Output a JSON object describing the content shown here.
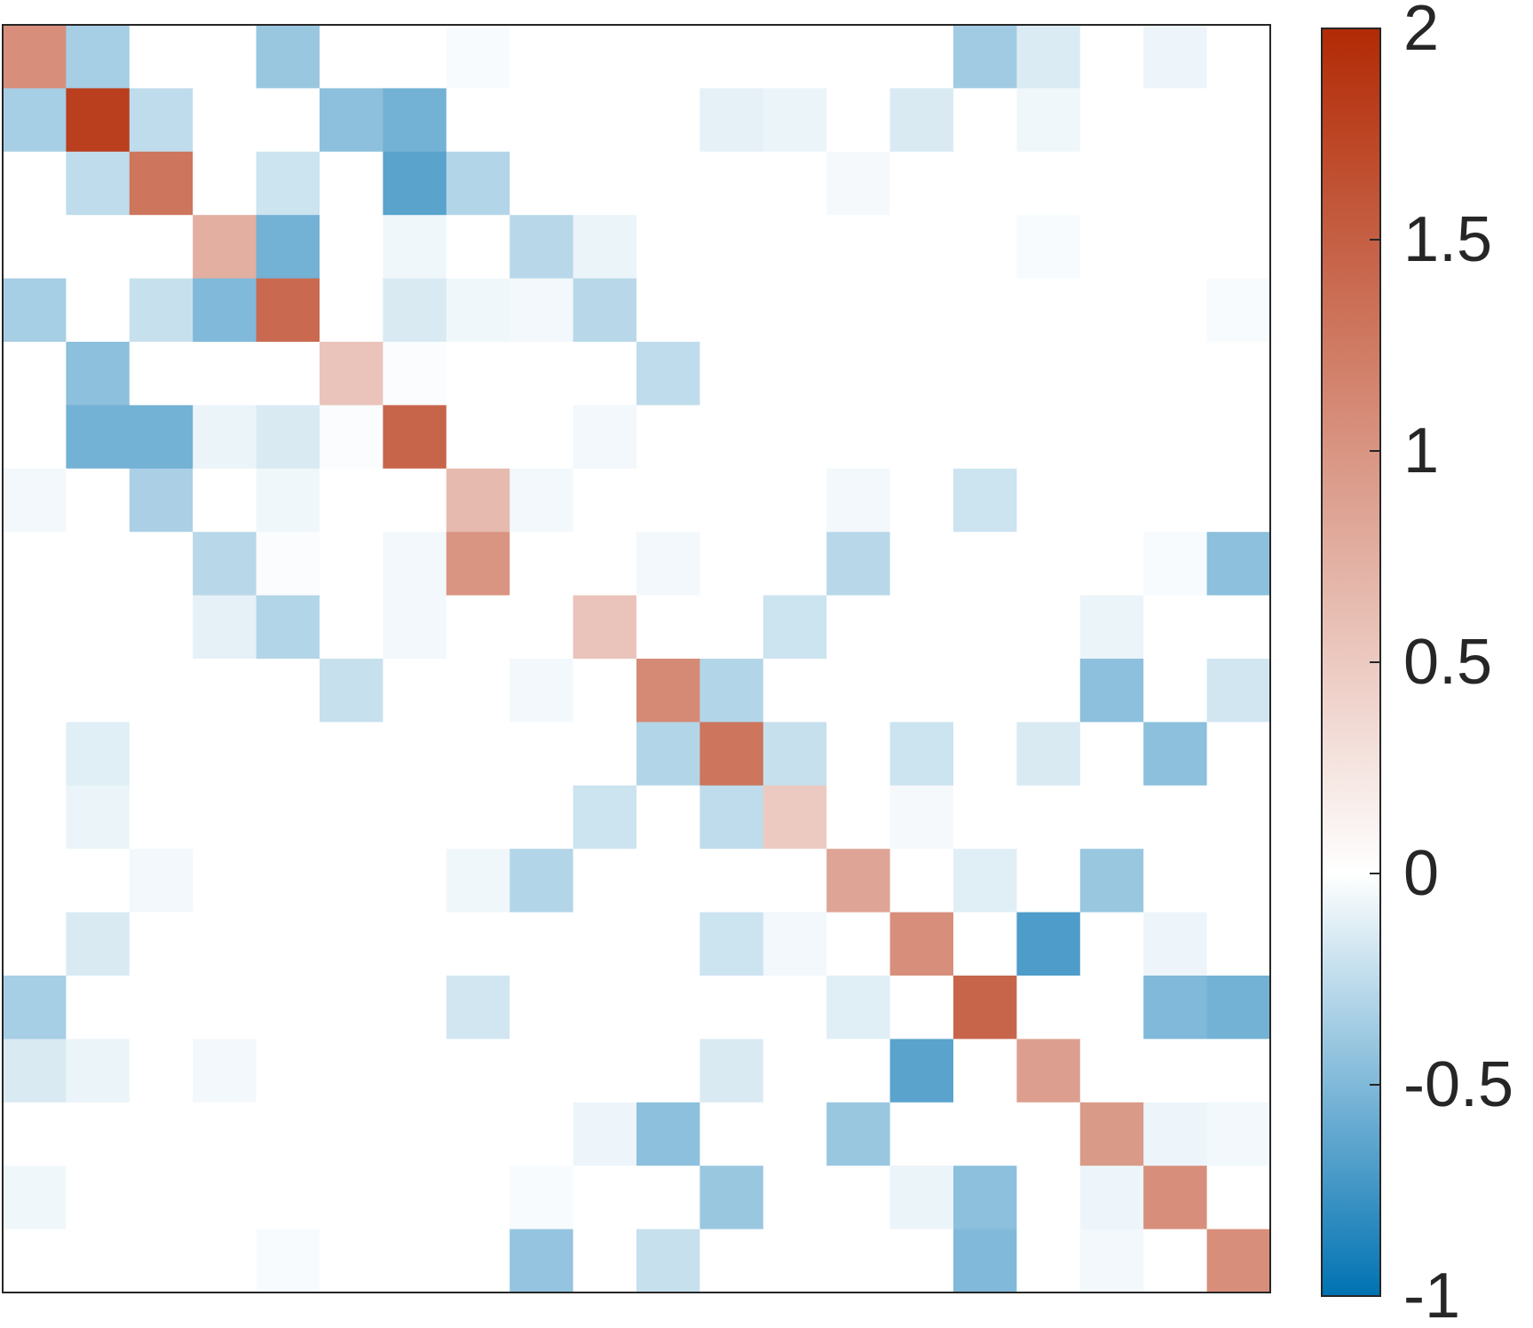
{
  "chart_data": {
    "type": "heatmap",
    "rows": 20,
    "cols": 20,
    "color_range": [
      -1,
      2
    ],
    "colormap": {
      "negative_end": "#0072b2",
      "zero": "#ffffff",
      "positive_end": "#b22a05"
    },
    "colorbar_ticks": [
      {
        "value": 2,
        "label": "2"
      },
      {
        "value": 1.5,
        "label": "1.5"
      },
      {
        "value": 1,
        "label": "1"
      },
      {
        "value": 0.5,
        "label": "0.5"
      },
      {
        "value": 0,
        "label": "0"
      },
      {
        "value": -0.5,
        "label": "-0.5"
      },
      {
        "value": -1,
        "label": "-1"
      }
    ],
    "grid": false,
    "matrix": [
      [
        1.05,
        -0.35,
        0,
        0,
        -0.4,
        0,
        0,
        -0.03,
        0,
        0,
        0,
        0,
        0,
        0,
        0,
        -0.37,
        -0.14,
        0,
        -0.07,
        0
      ],
      [
        -0.35,
        1.8,
        -0.25,
        0,
        0,
        -0.45,
        -0.55,
        0,
        0,
        0,
        0,
        -0.1,
        -0.08,
        0,
        -0.15,
        0,
        -0.06,
        0,
        0,
        0
      ],
      [
        0,
        -0.25,
        1.3,
        0,
        -0.2,
        0,
        -0.65,
        -0.3,
        0,
        0,
        0,
        0,
        0,
        -0.04,
        0,
        0,
        0,
        0,
        0,
        0
      ],
      [
        0,
        0,
        0,
        0.75,
        -0.55,
        0,
        -0.06,
        0,
        -0.28,
        -0.08,
        0,
        0,
        0,
        0,
        0,
        0,
        -0.03,
        0,
        0,
        0
      ],
      [
        -0.35,
        0,
        -0.22,
        -0.5,
        1.4,
        0,
        -0.15,
        -0.06,
        -0.05,
        -0.28,
        0,
        0,
        0,
        0,
        0,
        0,
        0,
        0,
        0,
        -0.03
      ],
      [
        0,
        -0.45,
        0,
        0,
        0,
        0.55,
        -0.02,
        0,
        0,
        0,
        -0.25,
        0,
        0,
        0,
        0,
        0,
        0,
        0,
        0,
        0
      ],
      [
        0,
        -0.55,
        -0.55,
        -0.08,
        -0.15,
        -0.02,
        1.45,
        0,
        0,
        -0.05,
        0,
        0,
        0,
        0,
        0,
        0,
        0,
        0,
        0,
        0
      ],
      [
        -0.05,
        0,
        -0.33,
        0,
        -0.06,
        0,
        0,
        0.65,
        -0.05,
        0,
        0,
        0,
        0,
        -0.05,
        0,
        -0.2,
        0,
        0,
        0,
        0
      ],
      [
        0,
        0,
        0,
        -0.28,
        -0.02,
        0,
        -0.05,
        1.0,
        0,
        0,
        -0.05,
        0,
        0,
        -0.28,
        0,
        0,
        0,
        0,
        -0.03,
        -0.45
      ],
      [
        0,
        0,
        0,
        -0.1,
        -0.3,
        0,
        -0.05,
        0,
        0,
        0.55,
        0,
        0,
        -0.2,
        0,
        0,
        0,
        0,
        -0.08,
        0,
        0
      ],
      [
        0,
        0,
        0,
        0,
        0,
        -0.22,
        0,
        0,
        -0.05,
        0,
        1.1,
        -0.3,
        0,
        0,
        0,
        0,
        0,
        -0.45,
        0,
        -0.18
      ],
      [
        0,
        -0.12,
        0,
        0,
        0,
        0,
        0,
        0,
        0,
        0,
        -0.3,
        1.3,
        -0.22,
        0,
        -0.2,
        0,
        -0.15,
        0,
        -0.45,
        0
      ],
      [
        0,
        -0.08,
        0,
        0,
        0,
        0,
        0,
        0,
        0,
        -0.2,
        0,
        -0.25,
        0.5,
        0,
        -0.04,
        0,
        0,
        0,
        0,
        0
      ],
      [
        0,
        0,
        -0.05,
        0,
        0,
        0,
        0,
        -0.06,
        -0.3,
        0,
        0,
        0,
        0,
        0.85,
        0,
        -0.12,
        0,
        -0.4,
        0,
        0
      ],
      [
        0,
        -0.15,
        0,
        0,
        0,
        0,
        0,
        0,
        0,
        0,
        0,
        -0.2,
        -0.05,
        0,
        1.05,
        0,
        -0.7,
        0,
        -0.07,
        0
      ],
      [
        -0.35,
        0,
        0,
        0,
        0,
        0,
        0,
        -0.18,
        0,
        0,
        0,
        0,
        0,
        -0.12,
        0,
        1.45,
        0,
        0,
        -0.5,
        -0.55
      ],
      [
        -0.15,
        -0.08,
        0,
        -0.05,
        0,
        0,
        0,
        0,
        0,
        0,
        0,
        -0.15,
        0,
        0,
        -0.65,
        0,
        0.9,
        0,
        0,
        0
      ],
      [
        0,
        0,
        0,
        0,
        0,
        0,
        0,
        0,
        0,
        -0.07,
        -0.45,
        0,
        0,
        -0.4,
        0,
        0,
        0,
        0.95,
        -0.07,
        -0.05
      ],
      [
        -0.06,
        0,
        0,
        0,
        0,
        0,
        0,
        0,
        -0.03,
        0,
        0,
        -0.4,
        0,
        0,
        -0.08,
        -0.45,
        0,
        -0.07,
        1.05,
        0
      ],
      [
        0,
        0,
        0,
        0,
        -0.03,
        0,
        0,
        0,
        -0.42,
        0,
        -0.22,
        0,
        0,
        0,
        0,
        -0.5,
        0,
        -0.05,
        0,
        1.05
      ]
    ]
  }
}
